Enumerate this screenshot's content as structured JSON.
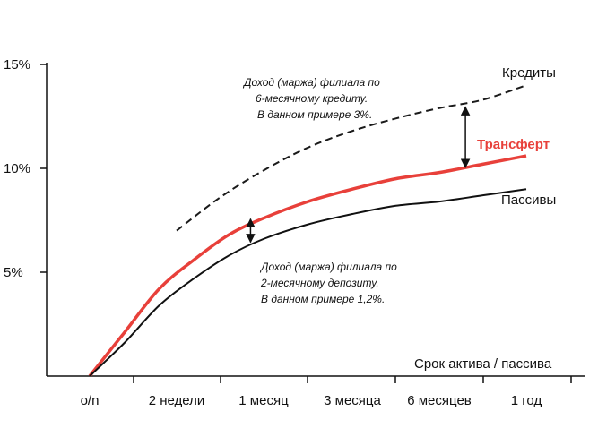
{
  "chart_data": {
    "type": "line",
    "title": "",
    "xlabel": "Срок актива / пассива",
    "ylabel": "",
    "categories": [
      "o/n",
      "2 недели",
      "1 месяц",
      "3 месяца",
      "6 месяцев",
      "1 год"
    ],
    "yticks": [
      "15%",
      "10%",
      "5%"
    ],
    "ylim": [
      0,
      15
    ],
    "grid": false,
    "series": [
      {
        "name": "Кредиты",
        "color": "#1a1a1a",
        "style": "dashed",
        "x": [
          1.0,
          1.5,
          2.0,
          2.5,
          3.0,
          3.5,
          4.0,
          4.5,
          5.0
        ],
        "values": [
          7.0,
          8.6,
          9.9,
          11.0,
          11.8,
          12.4,
          12.9,
          13.3,
          14.0
        ]
      },
      {
        "name": "Трансферт",
        "color": "#e8403a",
        "style": "solid",
        "x": [
          0.0,
          0.4,
          0.8,
          1.2,
          1.6,
          2.0,
          2.5,
          3.0,
          3.5,
          4.0,
          4.5,
          5.0
        ],
        "values": [
          0.0,
          2.1,
          4.2,
          5.6,
          6.8,
          7.6,
          8.4,
          9.0,
          9.5,
          9.8,
          10.2,
          10.6
        ]
      },
      {
        "name": "Пассивы",
        "color": "#111111",
        "style": "solid",
        "x": [
          0.0,
          0.4,
          0.8,
          1.2,
          1.6,
          2.0,
          2.5,
          3.0,
          3.5,
          4.0,
          4.5,
          5.0
        ],
        "values": [
          0.0,
          1.6,
          3.4,
          4.7,
          5.8,
          6.6,
          7.3,
          7.8,
          8.2,
          8.4,
          8.7,
          9.0
        ]
      }
    ],
    "annotations": [
      {
        "lines": [
          "Доход (маржа) филиала по",
          "6-месячному кредиту.",
          "В данном примере 3%."
        ],
        "arrow_x": 4.3,
        "arrow_y": [
          10.0,
          13.0
        ]
      },
      {
        "lines": [
          "Доход (маржа) филиала по",
          "2-месячному депозиту.",
          "В данном примере 1,2%."
        ],
        "arrow_x": 1.85,
        "arrow_y": [
          6.4,
          7.6
        ]
      }
    ]
  }
}
